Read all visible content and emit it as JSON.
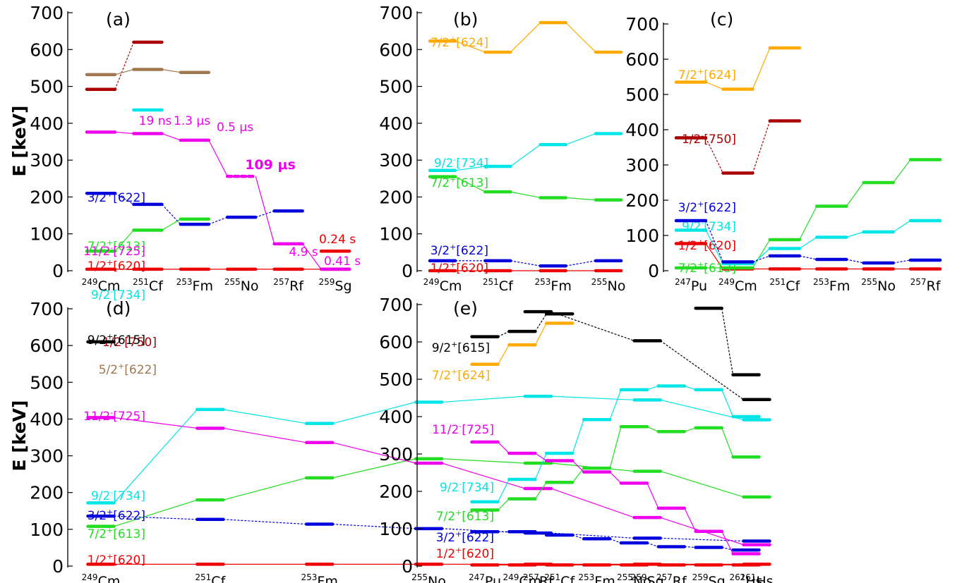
{
  "figure": {
    "ylabel_top": "E [keV]",
    "ylabel_bottom": "E [keV]"
  },
  "chart_data": [
    {
      "type": "level-scheme",
      "panel_label": "(a)",
      "ylabel": "E [keV]",
      "ylim": [
        0,
        700
      ],
      "yticks": [
        0,
        100,
        200,
        300,
        400,
        500,
        600,
        700
      ],
      "nuclei": [
        {
          "mass": "249",
          "sym": "Cm"
        },
        {
          "mass": "251",
          "sym": "Cf"
        },
        {
          "mass": "253",
          "sym": "Fm"
        },
        {
          "mass": "255",
          "sym": "No"
        },
        {
          "mass": "257",
          "sym": "Rf"
        },
        {
          "mass": "259",
          "sym": "Sg"
        }
      ],
      "series": [
        {
          "name": "1/2+[620]",
          "label": {
            "pre": "1/2",
            "sup": "+",
            "post": "[620]"
          },
          "color": "#ee0000",
          "values": [
            4,
            4,
            4,
            4,
            4,
            4
          ]
        },
        {
          "name": "7/2+[613]",
          "label": {
            "pre": "7/2",
            "sup": "+",
            "post": "[613]"
          },
          "color": "#22dd22",
          "values": [
            53,
            110,
            140,
            null,
            null,
            null
          ]
        },
        {
          "name": "3/2+[622]",
          "label": {
            "pre": "3/2",
            "sup": "+",
            "post": "[622]"
          },
          "color": "#0000dd",
          "values": [
            210,
            180,
            126,
            145,
            162,
            null
          ]
        },
        {
          "name": "11/2-[725]",
          "label": {
            "pre": "11/2",
            "sup": "-",
            "post": "[725]"
          },
          "color": "#ee00ee",
          "values": [
            376,
            372,
            354,
            256,
            73,
            4
          ]
        },
        {
          "name": "9/2-[734]",
          "label": {
            "pre": "9/2",
            "sup": "-",
            "post": "[734]"
          },
          "color": "#00e5e5",
          "values": [
            null,
            436,
            null,
            null,
            null,
            null
          ]
        },
        {
          "name": "1/2-[750]",
          "label": {
            "pre": "1/2",
            "sup": "-",
            "post": "[750]"
          },
          "color": "#aa0000",
          "values": [
            492,
            620,
            null,
            null,
            null,
            null
          ]
        },
        {
          "name": "5/2+[622]",
          "label": {
            "pre": "5/2",
            "sup": "+",
            "post": "[622]"
          },
          "color": "#a07850",
          "values": [
            532,
            546,
            538,
            null,
            null,
            null
          ]
        },
        {
          "name": "0.24 s level",
          "label": null,
          "color": "#ee0000",
          "values": [
            null,
            null,
            null,
            null,
            null,
            53
          ]
        }
      ],
      "annotations": [
        {
          "text": "19 ns",
          "color": "#ee00ee"
        },
        {
          "text": "1.3 μs",
          "color": "#ee00ee"
        },
        {
          "text": "0.5 μs",
          "color": "#ee00ee"
        },
        {
          "text": "109 μs",
          "color": "#ee00ee"
        },
        {
          "text": "4.9 s",
          "color": "#ee00ee"
        },
        {
          "text": "0.24 s",
          "color": "#ee0000"
        },
        {
          "text": "0.41 s",
          "color": "#ee00ee"
        }
      ]
    },
    {
      "type": "level-scheme",
      "panel_label": "(b)",
      "ylabel": "",
      "ylim": [
        0,
        700
      ],
      "yticks": [
        0,
        100,
        200,
        300,
        400,
        500,
        600,
        700
      ],
      "nuclei": [
        {
          "mass": "249",
          "sym": "Cm"
        },
        {
          "mass": "251",
          "sym": "Cf"
        },
        {
          "mass": "253",
          "sym": "Fm"
        },
        {
          "mass": "255",
          "sym": "No"
        }
      ],
      "series": [
        {
          "name": "1/2+[620]",
          "label": {
            "pre": "1/2",
            "sup": "+",
            "post": "[620]"
          },
          "color": "#ee0000",
          "values": [
            0,
            0,
            0,
            0
          ]
        },
        {
          "name": "3/2+[622]",
          "label": {
            "pre": "3/2",
            "sup": "+",
            "post": "[622]"
          },
          "color": "#0000dd",
          "values": [
            27,
            27,
            13,
            27
          ]
        },
        {
          "name": "7/2+[613]",
          "label": {
            "pre": "7/2",
            "sup": "+",
            "post": "[613]"
          },
          "color": "#22dd22",
          "values": [
            255,
            214,
            198,
            192
          ]
        },
        {
          "name": "9/2-[734]",
          "label": {
            "pre": "9/2",
            "sup": "-",
            "post": "[734]"
          },
          "color": "#00e5e5",
          "values": [
            272,
            283,
            342,
            372
          ]
        },
        {
          "name": "7/2+[624]",
          "label": {
            "pre": "7/2",
            "sup": "+",
            "post": "[624]"
          },
          "color": "#ffaa00",
          "values": [
            623,
            593,
            673,
            593
          ]
        }
      ],
      "annotations": []
    },
    {
      "type": "level-scheme",
      "panel_label": "(c)",
      "ylabel": "",
      "ylim": [
        0,
        700
      ],
      "yticks": [
        0,
        100,
        200,
        300,
        400,
        500,
        600,
        700
      ],
      "nuclei": [
        {
          "mass": "247",
          "sym": "Pu"
        },
        {
          "mass": "249",
          "sym": "Cm"
        },
        {
          "mass": "251",
          "sym": "Cf"
        },
        {
          "mass": "253",
          "sym": "Fm"
        },
        {
          "mass": "255",
          "sym": "No"
        },
        {
          "mass": "257",
          "sym": "Rf"
        }
      ],
      "series": [
        {
          "name": "1/2+[620]",
          "label": {
            "pre": "1/2",
            "sup": "+",
            "post": "[620]"
          },
          "color": "#ee0000",
          "values": [
            77,
            5,
            5,
            5,
            5,
            5
          ]
        },
        {
          "name": "7/2+[613]",
          "label": {
            "pre": "7/2",
            "sup": "+",
            "post": "[613]"
          },
          "color": "#22dd22",
          "values": [
            8,
            8,
            88,
            183,
            250,
            315
          ]
        },
        {
          "name": "9/2-[734]",
          "label": {
            "pre": "9/2",
            "sup": "-",
            "post": "[734]"
          },
          "color": "#00e5e5",
          "values": [
            115,
            20,
            63,
            95,
            110,
            142
          ]
        },
        {
          "name": "3/2+[622]",
          "label": {
            "pre": "3/2",
            "sup": "+",
            "post": "[622]"
          },
          "color": "#0000dd",
          "values": [
            142,
            25,
            42,
            32,
            22,
            30
          ]
        },
        {
          "name": "1/2-[750]",
          "label": {
            "pre": "1/2",
            "sup": "-",
            "post": "[750]"
          },
          "color": "#aa0000",
          "values": [
            377,
            277,
            425,
            null,
            null,
            null
          ]
        },
        {
          "name": "7/2+[624]",
          "label": {
            "pre": "7/2",
            "sup": "+",
            "post": "[624]"
          },
          "color": "#ffaa00",
          "values": [
            535,
            515,
            632,
            null,
            null,
            null
          ]
        }
      ],
      "annotations": []
    },
    {
      "type": "level-scheme",
      "panel_label": "(d)",
      "ylabel": "E [keV]",
      "ylim": [
        0,
        700
      ],
      "yticks": [
        0,
        100,
        200,
        300,
        400,
        500,
        600,
        700
      ],
      "nuclei": [
        {
          "mass": "249",
          "sym": "Cm"
        },
        {
          "mass": "251",
          "sym": "Cf"
        },
        {
          "mass": "253",
          "sym": "Fm"
        },
        {
          "mass": "255",
          "sym": "No"
        },
        {
          "mass": "257",
          "sym": "Rf"
        },
        {
          "mass": "259",
          "sym": "Sg"
        },
        {
          "mass": "261",
          "sym": "Hs"
        }
      ],
      "series": [
        {
          "name": "1/2+[620]",
          "label": {
            "pre": "1/2",
            "sup": "+",
            "post": "[620]"
          },
          "color": "#ee0000",
          "values": [
            5,
            5,
            5,
            5,
            5,
            5,
            5
          ]
        },
        {
          "name": "7/2+[613]",
          "label": {
            "pre": "7/2",
            "sup": "+",
            "post": "[613]"
          },
          "color": "#22dd22",
          "values": [
            108,
            180,
            240,
            292,
            280,
            258,
            188
          ]
        },
        {
          "name": "3/2+[622]",
          "label": {
            "pre": "3/2",
            "sup": "+",
            "post": "[622]"
          },
          "color": "#0000dd",
          "values": [
            136,
            127,
            114,
            102,
            90,
            76,
            68
          ]
        },
        {
          "name": "9/2-[734]",
          "label": {
            "pre": "9/2",
            "sup": "-",
            "post": "[734]"
          },
          "color": "#00e5e5",
          "values": [
            172,
            426,
            388,
            446,
            462,
            452,
            398
          ]
        },
        {
          "name": "11/2-[725]",
          "label": {
            "pre": "11/2",
            "sup": "-",
            "post": "[725]"
          },
          "color": "#ee00ee",
          "values": [
            404,
            375,
            336,
            280,
            211,
            132,
            58
          ]
        },
        {
          "name": "9/2+[615]",
          "label": {
            "pre": "9/2",
            "sup": "+",
            "post": "[615]"
          },
          "color": "#000000",
          "values": [
            610,
            null,
            null,
            null,
            692,
            613,
            453
          ]
        }
      ],
      "annotations": []
    },
    {
      "type": "level-scheme",
      "panel_label": "(e)",
      "ylabel": "",
      "ylim": [
        0,
        700
      ],
      "yticks": [
        0,
        100,
        200,
        300,
        400,
        500,
        600,
        700
      ],
      "nuclei": [
        {
          "mass": "247",
          "sym": "Pu"
        },
        {
          "mass": "249",
          "sym": "Cm"
        },
        {
          "mass": "251",
          "sym": "Cf"
        },
        {
          "mass": "253",
          "sym": "Fm"
        },
        {
          "mass": "255",
          "sym": "No"
        },
        {
          "mass": "257",
          "sym": "Rf"
        },
        {
          "mass": "259",
          "sym": "Sg"
        },
        {
          "mass": "261",
          "sym": "Hs"
        }
      ],
      "series": [
        {
          "name": "1/2+[620]",
          "label": {
            "pre": "1/2",
            "sup": "+",
            "post": "[620]"
          },
          "color": "#ee0000",
          "values": [
            3,
            3,
            3,
            3,
            3,
            3,
            3,
            3
          ]
        },
        {
          "name": "3/2+[622]",
          "label": {
            "pre": "3/2",
            "sup": "+",
            "post": "[622]"
          },
          "color": "#0000dd",
          "values": [
            92,
            92,
            83,
            73,
            62,
            52,
            50,
            43
          ]
        },
        {
          "name": "7/2+[613]",
          "label": {
            "pre": "7/2",
            "sup": "+",
            "post": "[613]"
          },
          "color": "#22dd22",
          "values": [
            150,
            180,
            224,
            262,
            373,
            360,
            370,
            292
          ]
        },
        {
          "name": "9/2-[734]",
          "label": {
            "pre": "9/2",
            "sup": "-",
            "post": "[734]"
          },
          "color": "#00e5e5",
          "values": [
            172,
            232,
            302,
            392,
            472,
            482,
            472,
            400
          ]
        },
        {
          "name": "11/2-[725]",
          "label": {
            "pre": "11/2",
            "sup": "-",
            "post": "[725]"
          },
          "color": "#ee00ee",
          "values": [
            332,
            302,
            282,
            252,
            222,
            155,
            93,
            33
          ]
        },
        {
          "name": "7/2+[624]",
          "label": {
            "pre": "7/2",
            "sup": "+",
            "post": "[624]"
          },
          "color": "#ffaa00",
          "values": [
            540,
            592,
            650,
            null,
            null,
            null,
            null,
            null
          ]
        },
        {
          "name": "9/2+[615]",
          "label": {
            "pre": "9/2",
            "sup": "+",
            "post": "[615]"
          },
          "color": "#000000",
          "values": [
            614,
            628,
            675,
            null,
            null,
            null,
            690,
            512
          ]
        }
      ],
      "annotations": []
    }
  ]
}
